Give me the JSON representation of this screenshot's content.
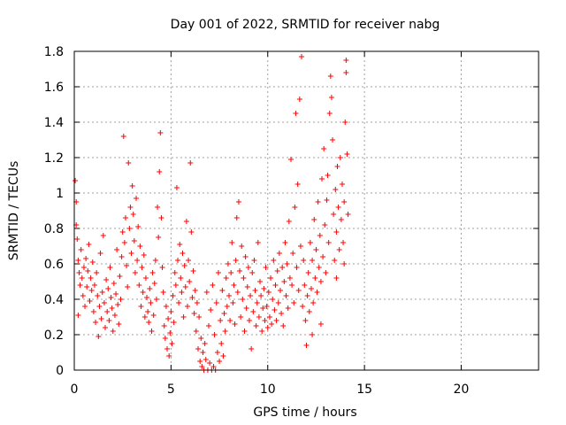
{
  "chart_data": {
    "type": "scatter",
    "title": "Day 001 of 2022, SRMTID for receiver nabg",
    "xlabel": "GPS time / hours",
    "ylabel": "SRMTID / TECUs",
    "xlim": [
      0,
      24
    ],
    "ylim": [
      0,
      1.8
    ],
    "x_ticks": [
      0,
      5,
      10,
      15,
      20
    ],
    "x_tick_labels": [
      "0",
      "5",
      "10",
      "15",
      "20"
    ],
    "y_ticks": [
      0,
      0.2,
      0.4,
      0.6,
      0.8,
      1.0,
      1.2,
      1.4,
      1.6,
      1.8
    ],
    "y_tick_labels": [
      "0",
      "0.2",
      "0.4",
      "0.6",
      "0.8",
      "1",
      "1.2",
      "1.4",
      "1.6",
      "1.8"
    ],
    "grid": true,
    "marker": "+",
    "color": "#ff0000",
    "series": [
      {
        "name": "SRMTID",
        "points": [
          [
            0.05,
            1.07
          ],
          [
            0.1,
            0.95
          ],
          [
            0.1,
            0.82
          ],
          [
            0.15,
            0.74
          ],
          [
            0.2,
            0.62
          ],
          [
            0.2,
            0.31
          ],
          [
            0.25,
            0.55
          ],
          [
            0.3,
            0.48
          ],
          [
            0.35,
            0.68
          ],
          [
            0.4,
            0.52
          ],
          [
            0.45,
            0.42
          ],
          [
            0.5,
            0.58
          ],
          [
            0.55,
            0.36
          ],
          [
            0.6,
            0.63
          ],
          [
            0.65,
            0.47
          ],
          [
            0.7,
            0.56
          ],
          [
            0.75,
            0.71
          ],
          [
            0.8,
            0.39
          ],
          [
            0.85,
            0.52
          ],
          [
            0.9,
            0.45
          ],
          [
            0.95,
            0.61
          ],
          [
            1.0,
            0.33
          ],
          [
            1.05,
            0.48
          ],
          [
            1.1,
            0.27
          ],
          [
            1.15,
            0.55
          ],
          [
            1.2,
            0.42
          ],
          [
            1.25,
            0.19
          ],
          [
            1.3,
            0.36
          ],
          [
            1.35,
            0.66
          ],
          [
            1.4,
            0.29
          ],
          [
            1.45,
            0.44
          ],
          [
            1.5,
            0.76
          ],
          [
            1.55,
            0.38
          ],
          [
            1.6,
            0.24
          ],
          [
            1.65,
            0.51
          ],
          [
            1.7,
            0.33
          ],
          [
            1.75,
            0.46
          ],
          [
            1.8,
            0.28
          ],
          [
            1.85,
            0.58
          ],
          [
            1.9,
            0.41
          ],
          [
            1.95,
            0.35
          ],
          [
            2.0,
            0.22
          ],
          [
            2.05,
            0.49
          ],
          [
            2.1,
            0.31
          ],
          [
            2.15,
            0.43
          ],
          [
            2.2,
            0.68
          ],
          [
            2.25,
            0.37
          ],
          [
            2.3,
            0.26
          ],
          [
            2.35,
            0.53
          ],
          [
            2.4,
            0.4
          ],
          [
            2.45,
            0.64
          ],
          [
            2.5,
            0.78
          ],
          [
            2.55,
            1.32
          ],
          [
            2.6,
            0.72
          ],
          [
            2.65,
            0.86
          ],
          [
            2.7,
            0.59
          ],
          [
            2.75,
            0.47
          ],
          [
            2.8,
            1.17
          ],
          [
            2.85,
            0.8
          ],
          [
            2.9,
            0.92
          ],
          [
            2.95,
            0.66
          ],
          [
            3.0,
            1.04
          ],
          [
            3.05,
            0.88
          ],
          [
            3.1,
            0.73
          ],
          [
            3.15,
            0.55
          ],
          [
            3.2,
            0.97
          ],
          [
            3.25,
            0.62
          ],
          [
            3.3,
            0.81
          ],
          [
            3.35,
            0.48
          ],
          [
            3.4,
            0.7
          ],
          [
            3.45,
            0.36
          ],
          [
            3.5,
            0.58
          ],
          [
            3.55,
            0.44
          ],
          [
            3.6,
            0.65
          ],
          [
            3.65,
            0.3
          ],
          [
            3.7,
            0.52
          ],
          [
            3.75,
            0.41
          ],
          [
            3.8,
            0.33
          ],
          [
            3.85,
            0.27
          ],
          [
            3.9,
            0.46
          ],
          [
            3.95,
            0.38
          ],
          [
            4.0,
            0.22
          ],
          [
            4.05,
            0.55
          ],
          [
            4.1,
            0.31
          ],
          [
            4.15,
            0.49
          ],
          [
            4.2,
            0.62
          ],
          [
            4.25,
            0.4
          ],
          [
            4.3,
            0.92
          ],
          [
            4.35,
            0.75
          ],
          [
            4.4,
            1.12
          ],
          [
            4.45,
            1.34
          ],
          [
            4.5,
            0.86
          ],
          [
            4.55,
            0.58
          ],
          [
            4.6,
            0.44
          ],
          [
            4.65,
            0.25
          ],
          [
            4.7,
            0.18
          ],
          [
            4.75,
            0.36
          ],
          [
            4.8,
            0.12
          ],
          [
            4.85,
            0.29
          ],
          [
            4.9,
            0.08
          ],
          [
            4.95,
            0.21
          ],
          [
            5.0,
            0.33
          ],
          [
            5.05,
            0.15
          ],
          [
            5.1,
            0.42
          ],
          [
            5.15,
            0.27
          ],
          [
            5.2,
            0.55
          ],
          [
            5.25,
            0.48
          ],
          [
            5.3,
            1.03
          ],
          [
            5.35,
            0.62
          ],
          [
            5.4,
            0.38
          ],
          [
            5.45,
            0.71
          ],
          [
            5.5,
            0.52
          ],
          [
            5.55,
            0.44
          ],
          [
            5.6,
            0.66
          ],
          [
            5.65,
            0.3
          ],
          [
            5.7,
            0.59
          ],
          [
            5.75,
            0.47
          ],
          [
            5.8,
            0.84
          ],
          [
            5.85,
            0.36
          ],
          [
            5.9,
            0.62
          ],
          [
            5.95,
            0.5
          ],
          [
            6.0,
            1.17
          ],
          [
            6.05,
            0.78
          ],
          [
            6.1,
            0.41
          ],
          [
            6.15,
            0.56
          ],
          [
            6.2,
            0.32
          ],
          [
            6.25,
            0.45
          ],
          [
            6.3,
            0.22
          ],
          [
            6.35,
            0.38
          ],
          [
            6.4,
            0.12
          ],
          [
            6.45,
            0.3
          ],
          [
            6.5,
            0.05
          ],
          [
            6.55,
            0.18
          ],
          [
            6.6,
            0.02
          ],
          [
            6.65,
            0.1
          ],
          [
            6.7,
            0.0
          ],
          [
            6.75,
            0.15
          ],
          [
            6.8,
            0.06
          ],
          [
            6.85,
            0.44
          ],
          [
            6.9,
            0.0
          ],
          [
            6.95,
            0.25
          ],
          [
            7.0,
            0.04
          ],
          [
            7.05,
            0.34
          ],
          [
            7.1,
            0.0
          ],
          [
            7.15,
            0.48
          ],
          [
            7.2,
            0.02
          ],
          [
            7.25,
            0.2
          ],
          [
            7.3,
            0.0
          ],
          [
            7.35,
            0.38
          ],
          [
            7.4,
            0.1
          ],
          [
            7.45,
            0.55
          ],
          [
            7.5,
            0.05
          ],
          [
            7.55,
            0.28
          ],
          [
            7.6,
            0.15
          ],
          [
            7.65,
            0.45
          ],
          [
            7.7,
            0.08
          ],
          [
            7.75,
            0.32
          ],
          [
            7.8,
            0.22
          ],
          [
            7.85,
            0.52
          ],
          [
            7.9,
            0.36
          ],
          [
            7.95,
            0.6
          ],
          [
            8.0,
            0.42
          ],
          [
            8.05,
            0.28
          ],
          [
            8.1,
            0.55
          ],
          [
            8.15,
            0.72
          ],
          [
            8.2,
            0.38
          ],
          [
            8.25,
            0.48
          ],
          [
            8.3,
            0.26
          ],
          [
            8.35,
            0.62
          ],
          [
            8.4,
            0.86
          ],
          [
            8.45,
            0.44
          ],
          [
            8.5,
            0.95
          ],
          [
            8.55,
            0.56
          ],
          [
            8.6,
            0.3
          ],
          [
            8.65,
            0.7
          ],
          [
            8.7,
            0.4
          ],
          [
            8.75,
            0.52
          ],
          [
            8.8,
            0.22
          ],
          [
            8.85,
            0.64
          ],
          [
            8.9,
            0.35
          ],
          [
            8.95,
            0.47
          ],
          [
            9.0,
            0.58
          ],
          [
            9.05,
            0.28
          ],
          [
            9.1,
            0.42
          ],
          [
            9.15,
            0.12
          ],
          [
            9.2,
            0.55
          ],
          [
            9.25,
            0.33
          ],
          [
            9.3,
            0.62
          ],
          [
            9.35,
            0.45
          ],
          [
            9.4,
            0.25
          ],
          [
            9.45,
            0.38
          ],
          [
            9.5,
            0.72
          ],
          [
            9.55,
            0.3
          ],
          [
            9.6,
            0.5
          ],
          [
            9.65,
            0.42
          ],
          [
            9.7,
            0.22
          ],
          [
            9.75,
            0.35
          ],
          [
            9.8,
            0.46
          ],
          [
            9.85,
            0.28
          ],
          [
            9.9,
            0.58
          ],
          [
            9.95,
            0.36
          ],
          [
            10.0,
            0.24
          ],
          [
            10.05,
            0.44
          ],
          [
            10.1,
            0.3
          ],
          [
            10.15,
            0.52
          ],
          [
            10.2,
            0.26
          ],
          [
            10.25,
            0.4
          ],
          [
            10.3,
            0.62
          ],
          [
            10.35,
            0.34
          ],
          [
            10.4,
            0.48
          ],
          [
            10.45,
            0.28
          ],
          [
            10.5,
            0.56
          ],
          [
            10.55,
            0.38
          ],
          [
            10.6,
            0.66
          ],
          [
            10.65,
            0.45
          ],
          [
            10.7,
            0.32
          ],
          [
            10.75,
            0.58
          ],
          [
            10.8,
            0.25
          ],
          [
            10.85,
            0.5
          ],
          [
            10.9,
            0.72
          ],
          [
            10.95,
            0.42
          ],
          [
            11.0,
            0.6
          ],
          [
            11.05,
            0.35
          ],
          [
            11.1,
            0.84
          ],
          [
            11.15,
            0.52
          ],
          [
            11.2,
            1.19
          ],
          [
            11.25,
            0.48
          ],
          [
            11.3,
            0.66
          ],
          [
            11.35,
            0.38
          ],
          [
            11.4,
            0.92
          ],
          [
            11.45,
            1.45
          ],
          [
            11.5,
            0.58
          ],
          [
            11.55,
            1.05
          ],
          [
            11.6,
            0.45
          ],
          [
            11.65,
            1.53
          ],
          [
            11.7,
            0.7
          ],
          [
            11.75,
            1.77
          ],
          [
            11.8,
            0.36
          ],
          [
            11.85,
            0.62
          ],
          [
            11.9,
            0.48
          ],
          [
            11.95,
            0.28
          ],
          [
            12.0,
            0.14
          ],
          [
            12.05,
            0.42
          ],
          [
            12.1,
            0.55
          ],
          [
            12.15,
            0.33
          ],
          [
            12.2,
            0.72
          ],
          [
            12.25,
            0.46
          ],
          [
            12.3,
            0.62
          ],
          [
            12.35,
            0.38
          ],
          [
            12.4,
            0.85
          ],
          [
            12.45,
            0.52
          ],
          [
            12.5,
            0.68
          ],
          [
            12.55,
            0.44
          ],
          [
            12.6,
            0.95
          ],
          [
            12.65,
            0.58
          ],
          [
            12.7,
            0.76
          ],
          [
            12.75,
            0.5
          ],
          [
            12.8,
            1.08
          ],
          [
            12.85,
            0.64
          ],
          [
            12.9,
            1.25
          ],
          [
            12.95,
            0.82
          ],
          [
            13.0,
            0.55
          ],
          [
            13.05,
            0.96
          ],
          [
            13.1,
            1.1
          ],
          [
            13.15,
            0.72
          ],
          [
            13.2,
            1.45
          ],
          [
            13.25,
            1.66
          ],
          [
            13.3,
            1.54
          ],
          [
            13.35,
            1.3
          ],
          [
            13.4,
            0.88
          ],
          [
            13.45,
            0.62
          ],
          [
            13.5,
            1.02
          ],
          [
            13.55,
            0.78
          ],
          [
            13.6,
            1.15
          ],
          [
            13.65,
            0.92
          ],
          [
            13.7,
            0.68
          ],
          [
            13.75,
            1.2
          ],
          [
            13.8,
            0.85
          ],
          [
            13.85,
            1.05
          ],
          [
            13.9,
            0.72
          ],
          [
            13.95,
            0.95
          ],
          [
            14.0,
            1.4
          ],
          [
            14.05,
            1.75
          ],
          [
            14.1,
            1.22
          ],
          [
            14.15,
            0.88
          ],
          [
            14.05,
            1.68
          ],
          [
            13.95,
            0.6
          ],
          [
            13.55,
            0.52
          ],
          [
            12.75,
            0.26
          ],
          [
            12.3,
            0.2
          ]
        ]
      }
    ]
  }
}
